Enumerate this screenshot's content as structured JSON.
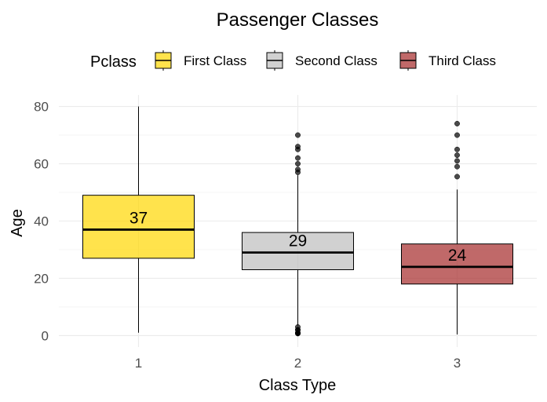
{
  "chart_data": {
    "type": "box",
    "title": "Passenger Classes",
    "xlabel": "Class Type",
    "ylabel": "Age",
    "ylim": [
      -4,
      84
    ],
    "y_ticks": [
      0,
      20,
      40,
      60,
      80
    ],
    "grid": true,
    "legend": {
      "title": "Pclass",
      "position": "top",
      "entries": [
        "First Class",
        "Second Class",
        "Third Class"
      ]
    },
    "categories": [
      "1",
      "2",
      "3"
    ],
    "series": [
      {
        "name": "First Class",
        "category": "1",
        "color": "#FFD700",
        "whisker_low": 1,
        "q1": 27,
        "median": 37,
        "q3": 49,
        "whisker_high": 80,
        "outliers": [],
        "median_label": "37"
      },
      {
        "name": "Second Class",
        "category": "2",
        "color": "#BEBEBE",
        "whisker_low": 3.5,
        "q1": 23,
        "median": 29,
        "q3": 36,
        "whisker_high": 56,
        "outliers": [
          0.7,
          0.8,
          0.9,
          1,
          2,
          2,
          3,
          57,
          58,
          60,
          62,
          65,
          66,
          70
        ],
        "median_label": "29"
      },
      {
        "name": "Third Class",
        "category": "3",
        "color": "#A52A2A",
        "whisker_low": 0.4,
        "q1": 18,
        "median": 24,
        "q3": 32,
        "whisker_high": 51,
        "outliers": [
          55.5,
          59,
          61,
          63,
          65,
          70,
          74
        ],
        "median_label": "24"
      }
    ]
  }
}
